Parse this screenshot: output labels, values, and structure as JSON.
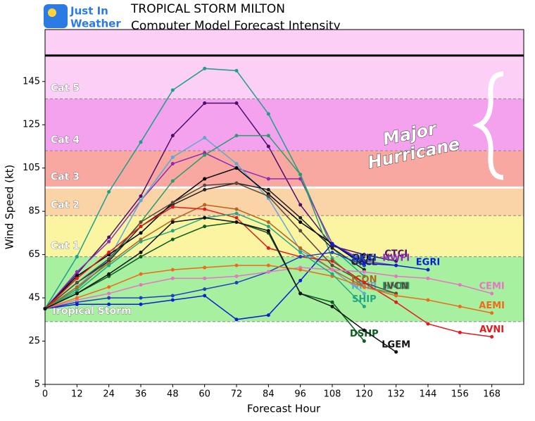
{
  "logo": {
    "line1": "Just In",
    "line2": "Weather"
  },
  "chart_data": {
    "type": "line",
    "title": "TROPICAL STORM MILTON",
    "subtitle": "Computer Model Forecast Intensity",
    "x_label": "Forecast Hour",
    "y_label": "Wind Speed (kt)",
    "annotation": "Major Hurricane",
    "xlim": [
      0,
      180
    ],
    "ylim": [
      5,
      169
    ],
    "xticks": [
      0,
      12,
      24,
      36,
      48,
      60,
      72,
      84,
      96,
      108,
      120,
      132,
      144,
      156,
      168
    ],
    "yticks": [
      5,
      25,
      45,
      65,
      85,
      105,
      125,
      145
    ],
    "bands": [
      {
        "label": "Tropical Storm",
        "from": 34,
        "to": 64,
        "color": "#a6f0a0"
      },
      {
        "label": "Cat 1",
        "from": 64,
        "to": 83,
        "color": "#fbf5a2"
      },
      {
        "label": "Cat 2",
        "from": 83,
        "to": 96,
        "color": "#fad3a6"
      },
      {
        "label": "Cat 3",
        "from": 96,
        "to": 113,
        "color": "#f8a8a0"
      },
      {
        "label": "Cat 4",
        "from": 113,
        "to": 137,
        "color": "#f4a2ee"
      },
      {
        "label": "Cat 5",
        "from": 137,
        "to": 169,
        "color": "#fcd0f6"
      }
    ],
    "hlines": [
      {
        "value": 157,
        "color": "#000000"
      },
      {
        "value": 96,
        "color": "#ffffff"
      }
    ],
    "x": [
      0,
      12,
      24,
      36,
      48,
      60,
      72,
      84,
      96,
      108,
      120,
      132,
      144,
      156,
      168
    ],
    "series": [
      {
        "color": "#1f9e89",
        "values": [
          40,
          64,
          94,
          117,
          141,
          151,
          150,
          130,
          102,
          68,
          55,
          null,
          null,
          null,
          null
        ]
      },
      {
        "name": "CTCI",
        "color": "#4b0f6b",
        "values": [
          40,
          56,
          73,
          92,
          120,
          135,
          135,
          115,
          88,
          69,
          65,
          62,
          null,
          null,
          null
        ]
      },
      {
        "name": "HWFI",
        "color": "#8e2bb5",
        "values": [
          40,
          57,
          71,
          90,
          107,
          112,
          105,
          100,
          100,
          70,
          62,
          60,
          null,
          null,
          null
        ]
      },
      {
        "name": "NNIB",
        "color": "#5fa8d3",
        "values": [
          40,
          50,
          63,
          90,
          110,
          119,
          107,
          91,
          67,
          58,
          47,
          null,
          null,
          null,
          null
        ]
      },
      {
        "name": "HMNI",
        "color": "#2a9d6a",
        "values": [
          40,
          49,
          62,
          80,
          99,
          111,
          120,
          120,
          102,
          63,
          50,
          47,
          null,
          null,
          null
        ]
      },
      {
        "name": "OFCI",
        "color": "#000000",
        "values": [
          40,
          55,
          65,
          75,
          89,
          100,
          105,
          93,
          80,
          70,
          60,
          null,
          null,
          null,
          null
        ]
      },
      {
        "name": "OFCL",
        "color": "#222222",
        "values": [
          40,
          52,
          62,
          78,
          88,
          95,
          98,
          95,
          82,
          68,
          58,
          null,
          null,
          null,
          null
        ]
      },
      {
        "name": "IVCN",
        "color": "#5a4a3a",
        "values": [
          40,
          52,
          63,
          80,
          89,
          97,
          98,
          92,
          76,
          60,
          52,
          47,
          null,
          null,
          null
        ]
      },
      {
        "name": "ICON",
        "color": "#b5651d",
        "values": [
          40,
          50,
          61,
          72,
          81,
          88,
          86,
          80,
          68,
          58,
          50,
          null,
          null,
          null,
          null
        ]
      },
      {
        "name": "AVNI",
        "color": "#e31a1c",
        "values": [
          40,
          54,
          66,
          78,
          87,
          86,
          82,
          68,
          64,
          62,
          52,
          43,
          33,
          29,
          27
        ]
      },
      {
        "name": "UKXI",
        "color": "#1f3fbf",
        "values": [
          40,
          43,
          45,
          45,
          46,
          49,
          52,
          57,
          64,
          66,
          60,
          null,
          null,
          null,
          null
        ]
      },
      {
        "name": "EGRI",
        "color": "#0a1fd0",
        "values": [
          40,
          42,
          42,
          42,
          44,
          46,
          35,
          37,
          53,
          70,
          61,
          60,
          58,
          null,
          null
        ]
      },
      {
        "name": "CEMI",
        "color": "#e377c2",
        "values": [
          40,
          44,
          47,
          51,
          54,
          54,
          55,
          57,
          59,
          58,
          57,
          55,
          54,
          51,
          47
        ]
      },
      {
        "name": "AEMI",
        "color": "#f06a1a",
        "values": [
          40,
          45,
          50,
          56,
          58,
          59,
          60,
          60,
          58,
          55,
          50,
          46,
          44,
          41,
          38
        ]
      },
      {
        "name": "DSHP",
        "color": "#0b5d1e",
        "values": [
          40,
          47,
          55,
          64,
          72,
          78,
          80,
          75,
          47,
          43,
          25,
          null,
          null,
          null,
          null
        ]
      },
      {
        "name": "SHIP",
        "color": "#22a884",
        "values": [
          40,
          48,
          60,
          71,
          76,
          82,
          84,
          78,
          66,
          56,
          41,
          null,
          null,
          null,
          null
        ]
      },
      {
        "name": "LGEM",
        "color": "#111111",
        "values": [
          40,
          47,
          56,
          66,
          80,
          82,
          80,
          76,
          47,
          41,
          30,
          20,
          null,
          null,
          null
        ]
      }
    ]
  }
}
